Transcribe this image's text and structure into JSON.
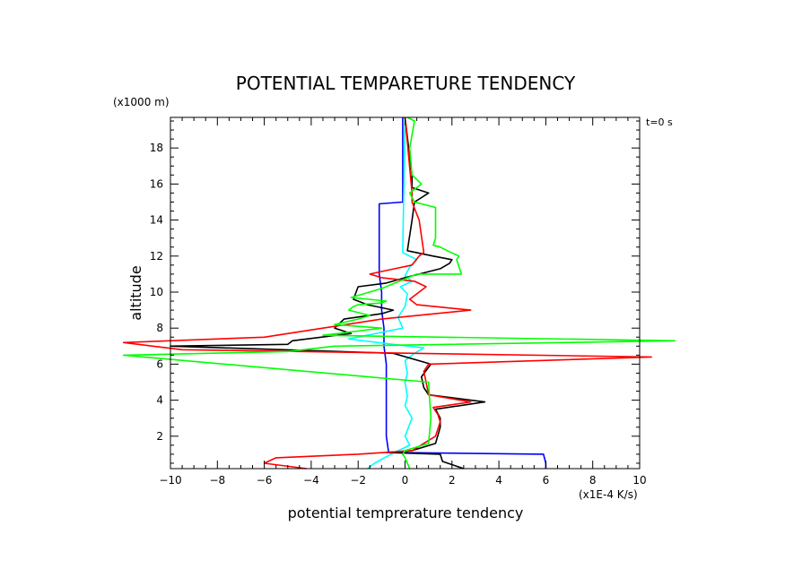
{
  "chart_data": {
    "type": "line",
    "title": "POTENTIAL TEMPARETURE TENDENCY",
    "xlabel": "potential temprerature tendency",
    "ylabel": "altitude",
    "x_unit": "(x1E-4 K/s)",
    "y_unit": "(x1000 m)",
    "time_label": "t=0 s",
    "xlim": [
      -10,
      10
    ],
    "ylim": [
      0.2,
      19.7
    ],
    "x_ticks": [
      -10,
      -8,
      -6,
      -4,
      -2,
      0,
      2,
      4,
      6,
      8,
      10
    ],
    "y_ticks": [
      2,
      4,
      6,
      8,
      10,
      12,
      14,
      16,
      18
    ],
    "grid": false,
    "colors": {
      "black": "#000000",
      "red": "#ff0000",
      "green": "#00ff00",
      "blue": "#0000ff",
      "cyan": "#00ffff"
    },
    "series": [
      {
        "color": "blue",
        "x": [
          6.0,
          6.0,
          5.9,
          -0.7,
          -0.8,
          -0.8,
          -0.8,
          -0.9,
          -0.9,
          -1.0,
          -1.0,
          -1.1,
          -1.1,
          -0.1,
          -0.1
        ],
        "y": [
          0.2,
          0.5,
          1.0,
          1.1,
          2.0,
          4.0,
          6.0,
          7.0,
          8.0,
          9.0,
          10.0,
          11.0,
          14.9,
          15.0,
          19.7
        ]
      },
      {
        "color": "cyan",
        "x": [
          -1.6,
          -1.3,
          -0.6,
          0.2,
          0.0,
          0.3,
          0.0,
          0.1,
          0.0,
          0.1,
          0.0,
          0.4,
          0.8,
          -0.5,
          -2.4,
          -0.1,
          -0.3,
          0.0,
          0.1,
          -0.2,
          0.3,
          0.0,
          0.2,
          0.5,
          -0.1,
          0.0
        ],
        "y": [
          0.2,
          0.5,
          1.0,
          1.5,
          2.0,
          3.0,
          3.7,
          4.2,
          5.0,
          5.5,
          6.2,
          6.6,
          6.9,
          7.1,
          7.4,
          8.0,
          8.6,
          9.2,
          9.9,
          10.3,
          10.6,
          10.9,
          11.4,
          11.8,
          12.2,
          19.7
        ]
      },
      {
        "color": "black",
        "x": [
          2.5,
          1.6,
          1.5,
          -0.8,
          0.3,
          1.3,
          1.5,
          1.5,
          1.3,
          3.4,
          1.0,
          0.8,
          0.7,
          1.1,
          -0.5,
          -10.0,
          -5.0,
          -4.8,
          -2.3,
          -3.0,
          -2.6,
          -1.0,
          -0.5,
          -1.6,
          -2.2,
          -2.0,
          -0.8,
          0.0,
          1.5,
          1.9,
          2.0,
          1.2,
          0.1,
          0.3,
          0.4,
          1.0,
          0.3,
          0.3,
          0.0
        ],
        "y": [
          0.2,
          0.6,
          1.0,
          1.1,
          1.2,
          1.6,
          2.5,
          3.0,
          3.5,
          3.9,
          4.3,
          4.7,
          5.3,
          6.0,
          6.6,
          7.0,
          7.1,
          7.3,
          7.7,
          8.0,
          8.5,
          8.8,
          9.0,
          9.3,
          9.6,
          10.3,
          10.5,
          10.8,
          11.3,
          11.6,
          11.8,
          12.0,
          12.3,
          14.0,
          15.0,
          15.5,
          15.8,
          16.4,
          19.7
        ]
      },
      {
        "color": "red",
        "x": [
          -4.2,
          -6.0,
          -5.5,
          -2.0,
          0.3,
          1.3,
          1.5,
          1.4,
          1.2,
          2.8,
          1.0,
          0.9,
          0.8,
          1.0,
          10.5,
          -9.5,
          -12.0,
          -6.0,
          -3.5,
          -1.0,
          2.8,
          0.5,
          0.2,
          0.9,
          0.4,
          -1.0,
          -1.5,
          -0.8,
          0.3,
          0.6,
          0.8,
          0.6,
          0.3,
          0.3,
          0.0
        ],
        "y": [
          0.2,
          0.5,
          0.8,
          1.0,
          1.2,
          2.0,
          2.8,
          3.2,
          3.6,
          3.9,
          4.3,
          5.0,
          5.6,
          6.0,
          6.4,
          6.8,
          7.2,
          7.5,
          8.0,
          8.5,
          9.0,
          9.3,
          9.6,
          10.3,
          10.6,
          10.8,
          11.0,
          11.2,
          11.5,
          12.0,
          12.2,
          14.0,
          15.0,
          15.5,
          19.7
        ]
      },
      {
        "color": "green",
        "x": [
          0.2,
          0.0,
          -0.1,
          0.0,
          1.0,
          1.1,
          1.0,
          -12.0,
          -5.0,
          -3.0,
          11.5,
          -3.5,
          -1.0,
          -3.0,
          -2.0,
          -1.5,
          -2.4,
          -2.2,
          -2.0,
          -1.0,
          -0.8,
          -2.3,
          -1.0,
          0.5,
          2.4,
          2.2,
          2.3,
          1.8,
          1.5,
          1.2,
          1.3,
          1.3,
          0.4,
          0.2,
          0.7,
          0.3,
          0.2,
          0.4,
          0.1
        ],
        "y": [
          0.2,
          0.8,
          1.0,
          1.2,
          1.6,
          3.0,
          5.0,
          6.5,
          6.7,
          7.0,
          7.3,
          7.6,
          8.0,
          8.2,
          8.5,
          8.7,
          9.0,
          9.2,
          9.3,
          9.4,
          9.5,
          9.7,
          10.2,
          11.0,
          11.0,
          11.8,
          12.0,
          12.3,
          12.5,
          12.6,
          13.0,
          14.7,
          15.0,
          15.5,
          16.0,
          16.5,
          18.0,
          19.5,
          19.7
        ]
      }
    ]
  }
}
